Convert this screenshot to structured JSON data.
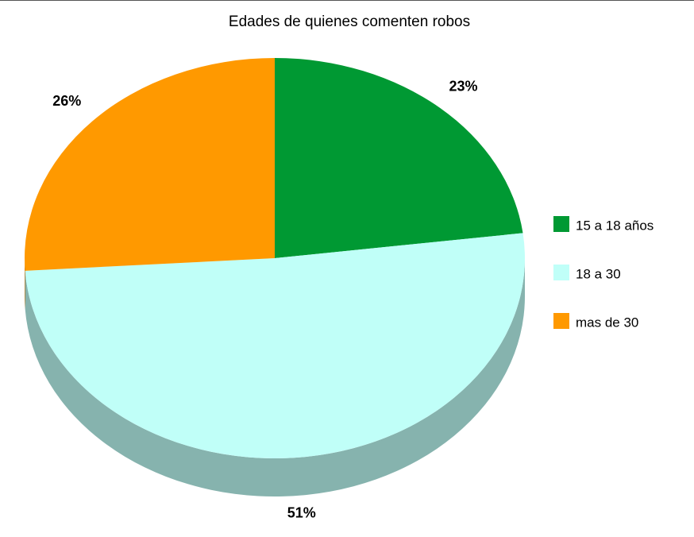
{
  "chart_data": {
    "type": "pie",
    "title": "Edades de quienes comenten robos",
    "categories": [
      "15 a 18 años",
      "18 a 30",
      "mas de 30"
    ],
    "values": [
      23,
      51,
      26
    ],
    "value_labels": [
      "23%",
      "51%",
      "26%"
    ],
    "colors": [
      "#009933",
      "#c0fff8",
      "#ff9900"
    ],
    "legend": "right"
  }
}
